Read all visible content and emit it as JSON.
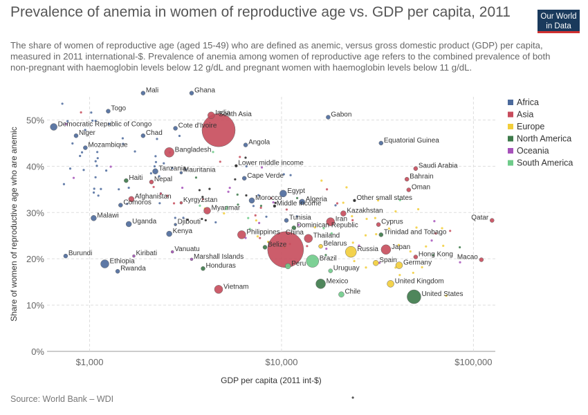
{
  "title": "Prevalence of anemia in women of reproductive age vs. GDP per capita, 2011",
  "subtitle": "The share of women of reproductive age (aged 15-49) who are defined as anemic, versus gross domestic product (GDP) per capita, measured in 2011 international-$. Prevalence of anemia among women of reproductive age refers to the combined prevalence of both non-pregnant with haemoglobin levels below 12 g/dL and pregnant women with haemoglobin levels below 11 g/dL.",
  "logo": {
    "line1": "Our World",
    "line2": "in Data"
  },
  "source": "Source: World Bank – WDI",
  "footer_mark": "•",
  "colors": {
    "Africa": "#4C6A9C",
    "Asia": "#C74C5C",
    "Europe": "#F2CE3A",
    "North America": "#3D7A4A",
    "Oceania": "#A652BA",
    "South America": "#6FCB8A",
    "Other": "#222222"
  },
  "chart_data": {
    "type": "scatter",
    "title": "Prevalence of anemia in women of reproductive age vs. GDP per capita, 2011",
    "xlabel": "GDP per capita (2011 int-$)",
    "ylabel": "Share of women of reproductive age who are anemic",
    "x_scale": "log",
    "xlim": [
      600,
      130000
    ],
    "ylim": [
      0,
      55
    ],
    "x_ticks": [
      {
        "value": 1000,
        "label": "$1,000"
      },
      {
        "value": 10000,
        "label": "$10,000"
      },
      {
        "value": 100000,
        "label": "$100,000"
      }
    ],
    "y_ticks": [
      {
        "value": 0,
        "label": "0%"
      },
      {
        "value": 10,
        "label": "10%"
      },
      {
        "value": 20,
        "label": "20%"
      },
      {
        "value": 30,
        "label": "30%"
      },
      {
        "value": 40,
        "label": "40%"
      },
      {
        "value": 50,
        "label": "50%"
      }
    ],
    "grid": true,
    "legend_position": "right",
    "legend": [
      "Africa",
      "Asia",
      "Europe",
      "North America",
      "Oceania",
      "South America"
    ],
    "labeled_points": [
      {
        "label": "Mali",
        "x": 1900,
        "y": 55.8,
        "region": "Africa",
        "size": 3
      },
      {
        "label": "Ghana",
        "x": 3400,
        "y": 55.8,
        "region": "Africa",
        "size": 3
      },
      {
        "label": "Togo",
        "x": 1250,
        "y": 51.9,
        "region": "Africa",
        "size": 3
      },
      {
        "label": "India",
        "x": 4300,
        "y": 51.0,
        "region": "Asia",
        "size": 5
      },
      {
        "label": "Gabon",
        "x": 17500,
        "y": 50.6,
        "region": "Africa",
        "size": 3
      },
      {
        "label": "Democratic Republic of Congo",
        "x": 650,
        "y": 48.5,
        "region": "Africa",
        "size": 5
      },
      {
        "label": "Cote d'Ivoire",
        "x": 2800,
        "y": 48.2,
        "region": "Africa",
        "size": 3
      },
      {
        "label": "South Asia",
        "x": 4700,
        "y": 47.8,
        "region": "Asia",
        "size": 24
      },
      {
        "label": "Niger",
        "x": 850,
        "y": 46.6,
        "region": "Africa",
        "size": 3
      },
      {
        "label": "Chad",
        "x": 1900,
        "y": 46.6,
        "region": "Africa",
        "size": 3
      },
      {
        "label": "Equatorial Guinea",
        "x": 33000,
        "y": 45.0,
        "region": "Africa",
        "size": 3
      },
      {
        "label": "Angola",
        "x": 6500,
        "y": 44.6,
        "region": "Africa",
        "size": 3
      },
      {
        "label": "Mozambique",
        "x": 950,
        "y": 44.0,
        "region": "Africa",
        "size": 3
      },
      {
        "label": "Bangladesh",
        "x": 2600,
        "y": 43.0,
        "region": "Asia",
        "size": 7
      },
      {
        "label": "Lower middle income",
        "x": 5800,
        "y": 40.1,
        "region": "Other",
        "size": 2
      },
      {
        "label": "Saudi Arabia",
        "x": 50000,
        "y": 39.5,
        "region": "Asia",
        "size": 3
      },
      {
        "label": "Tanzania",
        "x": 2200,
        "y": 38.9,
        "region": "Africa",
        "size": 4
      },
      {
        "label": "Mauritania",
        "x": 3000,
        "y": 38.6,
        "region": "Africa",
        "size": 2
      },
      {
        "label": "Cape Verde",
        "x": 6400,
        "y": 37.4,
        "region": "Africa",
        "size": 3
      },
      {
        "label": "Haiti",
        "x": 1550,
        "y": 36.9,
        "region": "North America",
        "size": 3
      },
      {
        "label": "Nepal",
        "x": 2100,
        "y": 36.6,
        "region": "Asia",
        "size": 3
      },
      {
        "label": "Bahrain",
        "x": 45000,
        "y": 37.2,
        "region": "Asia",
        "size": 3
      },
      {
        "label": "Oman",
        "x": 46000,
        "y": 34.9,
        "region": "Asia",
        "size": 3
      },
      {
        "label": "Egypt",
        "x": 10200,
        "y": 34.1,
        "region": "Africa",
        "size": 5
      },
      {
        "label": "Afghanistan",
        "x": 1650,
        "y": 32.9,
        "region": "Asia",
        "size": 4
      },
      {
        "label": "Morocco",
        "x": 7000,
        "y": 32.6,
        "region": "Africa",
        "size": 4
      },
      {
        "label": "Algeria",
        "x": 12800,
        "y": 32.3,
        "region": "Africa",
        "size": 4
      },
      {
        "label": "Kyrgyzstan",
        "x": 3000,
        "y": 32.1,
        "region": "Asia",
        "size": 2
      },
      {
        "label": "Other small states",
        "x": 24000,
        "y": 32.6,
        "region": "Other",
        "size": 2
      },
      {
        "label": "Middle income",
        "x": 9200,
        "y": 31.4,
        "region": "Other",
        "size": 2
      },
      {
        "label": "Comoros",
        "x": 1450,
        "y": 31.6,
        "region": "Africa",
        "size": 3
      },
      {
        "label": "Myanmar",
        "x": 4100,
        "y": 30.4,
        "region": "Asia",
        "size": 5
      },
      {
        "label": "Kazakhstan",
        "x": 21000,
        "y": 29.8,
        "region": "Asia",
        "size": 4
      },
      {
        "label": "Malawi",
        "x": 1050,
        "y": 28.8,
        "region": "Africa",
        "size": 4
      },
      {
        "label": "Tunisia",
        "x": 10600,
        "y": 28.3,
        "region": "Africa",
        "size": 3
      },
      {
        "label": "Iran",
        "x": 18000,
        "y": 28.0,
        "region": "Asia",
        "size": 6
      },
      {
        "label": "Qatar",
        "x": 125000,
        "y": 28.3,
        "region": "Asia",
        "size": 3
      },
      {
        "label": "Uganda",
        "x": 1600,
        "y": 27.5,
        "region": "Africa",
        "size": 4
      },
      {
        "label": "Djibouti",
        "x": 2800,
        "y": 27.4,
        "region": "Africa",
        "size": 2
      },
      {
        "label": "Cyprus",
        "x": 32000,
        "y": 27.4,
        "region": "Asia",
        "size": 3
      },
      {
        "label": "Dominican Republic",
        "x": 11600,
        "y": 26.7,
        "region": "North America",
        "size": 3
      },
      {
        "label": "Trinidad and Tobago",
        "x": 33000,
        "y": 25.2,
        "region": "North America",
        "size": 3
      },
      {
        "label": "Kenya",
        "x": 2600,
        "y": 25.4,
        "region": "Africa",
        "size": 4
      },
      {
        "label": "Thailand",
        "x": 13800,
        "y": 24.4,
        "region": "Asia",
        "size": 6
      },
      {
        "label": "Philippines",
        "x": 6200,
        "y": 25.2,
        "region": "Asia",
        "size": 6
      },
      {
        "label": "Belarus",
        "x": 16000,
        "y": 22.7,
        "region": "Europe",
        "size": 3
      },
      {
        "label": "China",
        "x": 10500,
        "y": 22.0,
        "region": "Asia",
        "size": 26
      },
      {
        "label": "Belize",
        "x": 8200,
        "y": 22.5,
        "region": "North America",
        "size": 3
      },
      {
        "label": "Russia",
        "x": 23000,
        "y": 21.5,
        "region": "Europe",
        "size": 8
      },
      {
        "label": "Japan",
        "x": 35000,
        "y": 22.0,
        "region": "Asia",
        "size": 7
      },
      {
        "label": "Vanuatu",
        "x": 2700,
        "y": 21.5,
        "region": "Oceania",
        "size": 2
      },
      {
        "label": "Burundi",
        "x": 750,
        "y": 20.6,
        "region": "Africa",
        "size": 3
      },
      {
        "label": "Kiribati",
        "x": 1700,
        "y": 20.6,
        "region": "Oceania",
        "size": 2
      },
      {
        "label": "Hong Kong",
        "x": 50000,
        "y": 20.4,
        "region": "Asia",
        "size": 3
      },
      {
        "label": "Macao",
        "x": 110000,
        "y": 19.8,
        "region": "Asia",
        "size": 3
      },
      {
        "label": "Brazil",
        "x": 14500,
        "y": 19.5,
        "region": "South America",
        "size": 9
      },
      {
        "label": "Ethiopia",
        "x": 1200,
        "y": 18.9,
        "region": "Africa",
        "size": 6
      },
      {
        "label": "Marshall Islands",
        "x": 3400,
        "y": 19.9,
        "region": "Oceania",
        "size": 2
      },
      {
        "label": "Spain",
        "x": 31000,
        "y": 19.1,
        "region": "Europe",
        "size": 4
      },
      {
        "label": "Germany",
        "x": 41000,
        "y": 18.6,
        "region": "Europe",
        "size": 5
      },
      {
        "label": "Peru",
        "x": 10800,
        "y": 18.4,
        "region": "South America",
        "size": 4
      },
      {
        "label": "Rwanda",
        "x": 1400,
        "y": 17.3,
        "region": "Africa",
        "size": 3
      },
      {
        "label": "Honduras",
        "x": 3900,
        "y": 17.9,
        "region": "North America",
        "size": 3
      },
      {
        "label": "Uruguay",
        "x": 18000,
        "y": 17.4,
        "region": "South America",
        "size": 3
      },
      {
        "label": "United Kingdom",
        "x": 37000,
        "y": 14.6,
        "region": "Europe",
        "size": 5
      },
      {
        "label": "Mexico",
        "x": 16000,
        "y": 14.6,
        "region": "North America",
        "size": 7
      },
      {
        "label": "Vietnam",
        "x": 4700,
        "y": 13.4,
        "region": "Asia",
        "size": 6
      },
      {
        "label": "United States",
        "x": 49000,
        "y": 11.8,
        "region": "North America",
        "size": 10
      },
      {
        "label": "Chile",
        "x": 20500,
        "y": 12.3,
        "region": "South America",
        "size": 4
      }
    ]
  }
}
